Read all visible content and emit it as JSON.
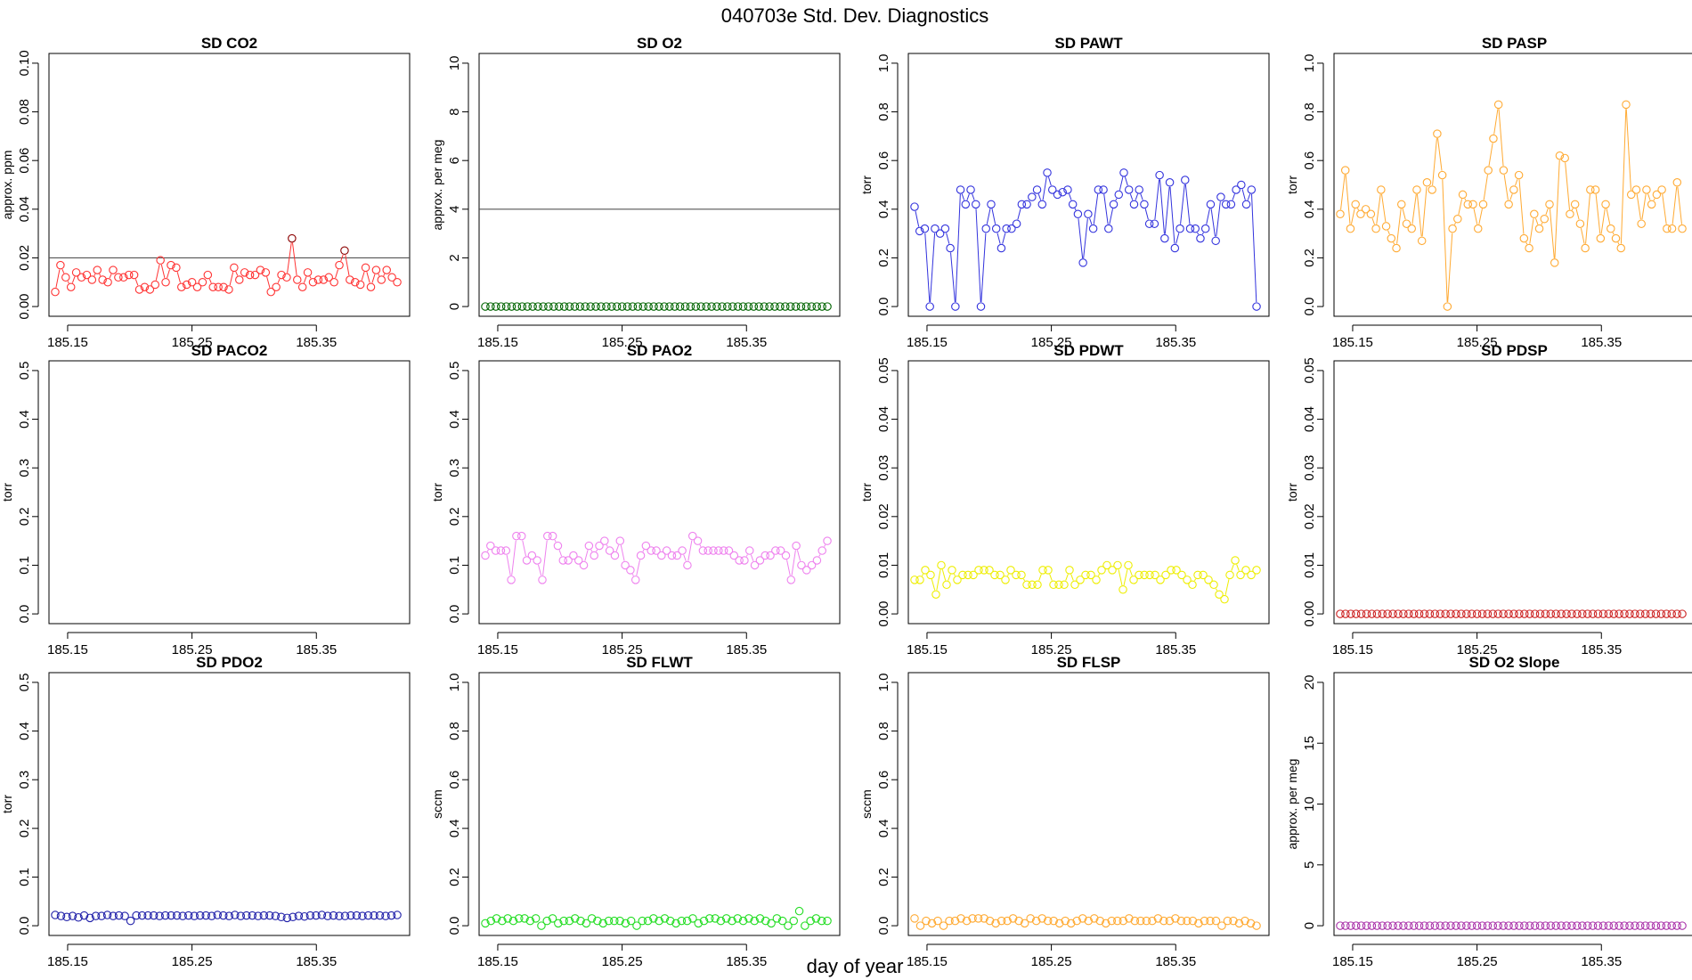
{
  "figure": {
    "title": "040703e   Std. Dev. Diagnostics",
    "xlabel": "day of year"
  },
  "chart_data": [
    {
      "type": "scatter",
      "title": "SD CO2",
      "ylabel": "approx. ppm",
      "ylim": [
        0,
        0.1
      ],
      "yticks": [
        0,
        0.02,
        0.04,
        0.06,
        0.08,
        0.1
      ],
      "yticklabels": [
        "0.00",
        "0.02",
        "0.04",
        "0.06",
        "0.08",
        "0.10"
      ],
      "hline": 0.02,
      "color": "#ff3333",
      "line": true,
      "values": [
        0.006,
        0.017,
        0.012,
        0.008,
        0.014,
        0.012,
        0.013,
        0.011,
        0.015,
        0.011,
        0.01,
        0.015,
        0.012,
        0.012,
        0.013,
        0.013,
        0.007,
        0.008,
        0.007,
        0.009,
        0.019,
        0.01,
        0.017,
        0.016,
        0.008,
        0.009,
        0.01,
        0.008,
        0.01,
        0.013,
        0.008,
        0.008,
        0.008,
        0.007,
        0.016,
        0.011,
        0.014,
        0.013,
        0.013,
        0.015,
        0.014,
        0.006,
        0.008,
        0.013,
        0.012,
        0.028,
        0.011,
        0.008,
        0.014,
        0.01,
        0.011,
        0.011,
        0.012,
        0.01,
        0.017,
        0.023,
        0.011,
        0.01,
        0.009,
        0.016,
        0.008,
        0.015,
        0.011,
        0.015,
        0.012,
        0.01
      ],
      "highlight_color": "#8b0000",
      "highlight_indices": [
        45,
        55
      ]
    },
    {
      "type": "scatter",
      "title": "SD O2",
      "ylabel": "approx. per meg",
      "ylim": [
        0,
        10
      ],
      "yticks": [
        0,
        2,
        4,
        6,
        8,
        10
      ],
      "yticklabels": [
        "0",
        "2",
        "4",
        "6",
        "8",
        "10"
      ],
      "hline": 4,
      "color": "#006400",
      "line": false,
      "constant": 0
    },
    {
      "type": "scatter",
      "title": "SD PAWT",
      "ylabel": "torr",
      "ylim": [
        0,
        1
      ],
      "yticks": [
        0,
        0.2,
        0.4,
        0.6,
        0.8,
        1
      ],
      "yticklabels": [
        "0.0",
        "0.2",
        "0.4",
        "0.6",
        "0.8",
        "1.0"
      ],
      "hline": null,
      "color": "#3333dd",
      "line": true,
      "values": [
        0.41,
        0.31,
        0.32,
        0.0,
        0.32,
        0.3,
        0.32,
        0.24,
        0.0,
        0.48,
        0.42,
        0.48,
        0.42,
        0.0,
        0.32,
        0.42,
        0.32,
        0.24,
        0.32,
        0.32,
        0.34,
        0.42,
        0.42,
        0.45,
        0.48,
        0.42,
        0.55,
        0.48,
        0.46,
        0.47,
        0.48,
        0.42,
        0.38,
        0.18,
        0.38,
        0.32,
        0.48,
        0.48,
        0.32,
        0.42,
        0.46,
        0.55,
        0.48,
        0.42,
        0.48,
        0.42,
        0.34,
        0.34,
        0.54,
        0.28,
        0.51,
        0.24,
        0.32,
        0.52,
        0.32,
        0.32,
        0.28,
        0.32,
        0.42,
        0.27,
        0.45,
        0.42,
        0.42,
        0.48,
        0.5,
        0.42,
        0.48,
        0.0
      ]
    },
    {
      "type": "scatter",
      "title": "SD PASP",
      "ylabel": "torr",
      "ylim": [
        0,
        1
      ],
      "yticks": [
        0,
        0.2,
        0.4,
        0.6,
        0.8,
        1
      ],
      "yticklabels": [
        "0.0",
        "0.2",
        "0.4",
        "0.6",
        "0.8",
        "1.0"
      ],
      "hline": null,
      "color": "#ffaa33",
      "line": true,
      "values": [
        0.38,
        0.56,
        0.32,
        0.42,
        0.38,
        0.4,
        0.38,
        0.32,
        0.48,
        0.33,
        0.28,
        0.24,
        0.42,
        0.34,
        0.32,
        0.48,
        0.27,
        0.51,
        0.48,
        0.71,
        0.54,
        0.0,
        0.32,
        0.36,
        0.46,
        0.42,
        0.42,
        0.32,
        0.42,
        0.56,
        0.69,
        0.83,
        0.56,
        0.42,
        0.48,
        0.54,
        0.28,
        0.24,
        0.38,
        0.32,
        0.36,
        0.42,
        0.18,
        0.62,
        0.61,
        0.38,
        0.42,
        0.34,
        0.24,
        0.48,
        0.48,
        0.28,
        0.42,
        0.32,
        0.28,
        0.24,
        0.83,
        0.46,
        0.48,
        0.34,
        0.48,
        0.42,
        0.46,
        0.48,
        0.32,
        0.32,
        0.51,
        0.32
      ]
    },
    {
      "type": "scatter",
      "title": "SD PACO2",
      "ylabel": "torr",
      "ylim": [
        0,
        0.5
      ],
      "yticks": [
        0,
        0.1,
        0.2,
        0.3,
        0.4,
        0.5
      ],
      "yticklabels": [
        "0.0",
        "0.1",
        "0.2",
        "0.3",
        "0.4",
        "0.5"
      ],
      "hline": null,
      "color": "#000000",
      "line": false,
      "empty": true
    },
    {
      "type": "scatter",
      "title": "SD PAO2",
      "ylabel": "torr",
      "ylim": [
        0,
        0.5
      ],
      "yticks": [
        0,
        0.1,
        0.2,
        0.3,
        0.4,
        0.5
      ],
      "yticklabels": [
        "0.0",
        "0.1",
        "0.2",
        "0.3",
        "0.4",
        "0.5"
      ],
      "hline": null,
      "color": "#ee82ee",
      "line": true,
      "values": [
        0.12,
        0.14,
        0.13,
        0.13,
        0.13,
        0.07,
        0.16,
        0.16,
        0.11,
        0.12,
        0.11,
        0.07,
        0.16,
        0.16,
        0.14,
        0.11,
        0.11,
        0.12,
        0.11,
        0.1,
        0.14,
        0.12,
        0.14,
        0.15,
        0.13,
        0.12,
        0.15,
        0.1,
        0.09,
        0.07,
        0.12,
        0.14,
        0.13,
        0.13,
        0.12,
        0.13,
        0.12,
        0.12,
        0.13,
        0.1,
        0.16,
        0.15,
        0.13,
        0.13,
        0.13,
        0.13,
        0.13,
        0.13,
        0.12,
        0.11,
        0.11,
        0.13,
        0.1,
        0.11,
        0.12,
        0.12,
        0.13,
        0.13,
        0.12,
        0.07,
        0.14,
        0.1,
        0.09,
        0.1,
        0.11,
        0.13,
        0.15
      ]
    },
    {
      "type": "scatter",
      "title": "SD PDWT",
      "ylabel": "torr",
      "ylim": [
        0,
        0.05
      ],
      "yticks": [
        0,
        0.01,
        0.02,
        0.03,
        0.04,
        0.05
      ],
      "yticklabels": [
        "0.00",
        "0.01",
        "0.02",
        "0.03",
        "0.04",
        "0.05"
      ],
      "hline": null,
      "color": "#eeee00",
      "line": true,
      "values": [
        0.007,
        0.007,
        0.009,
        0.008,
        0.004,
        0.01,
        0.006,
        0.009,
        0.007,
        0.008,
        0.008,
        0.008,
        0.009,
        0.009,
        0.009,
        0.008,
        0.008,
        0.007,
        0.009,
        0.008,
        0.008,
        0.006,
        0.006,
        0.006,
        0.009,
        0.009,
        0.006,
        0.006,
        0.006,
        0.009,
        0.006,
        0.007,
        0.008,
        0.008,
        0.007,
        0.009,
        0.01,
        0.009,
        0.01,
        0.005,
        0.01,
        0.007,
        0.008,
        0.008,
        0.008,
        0.008,
        0.007,
        0.008,
        0.009,
        0.009,
        0.008,
        0.007,
        0.006,
        0.008,
        0.008,
        0.007,
        0.006,
        0.004,
        0.003,
        0.008,
        0.011,
        0.008,
        0.009,
        0.008,
        0.009
      ]
    },
    {
      "type": "scatter",
      "title": "SD PDSP",
      "ylabel": "torr",
      "ylim": [
        0,
        0.05
      ],
      "yticks": [
        0,
        0.01,
        0.02,
        0.03,
        0.04,
        0.05
      ],
      "yticklabels": [
        "0.00",
        "0.01",
        "0.02",
        "0.03",
        "0.04",
        "0.05"
      ],
      "hline": null,
      "color": "#cc2222",
      "line": false,
      "constant": 0
    },
    {
      "type": "scatter",
      "title": "SD PDO2",
      "ylabel": "torr",
      "ylim": [
        0,
        0.5
      ],
      "yticks": [
        0,
        0.1,
        0.2,
        0.3,
        0.4,
        0.5
      ],
      "yticklabels": [
        "0.0",
        "0.1",
        "0.2",
        "0.3",
        "0.4",
        "0.5"
      ],
      "hline": null,
      "color": "#2222aa",
      "line": false,
      "values": [
        0.022,
        0.02,
        0.018,
        0.02,
        0.017,
        0.021,
        0.016,
        0.02,
        0.02,
        0.022,
        0.02,
        0.021,
        0.02,
        0.01,
        0.021,
        0.021,
        0.021,
        0.021,
        0.02,
        0.021,
        0.021,
        0.021,
        0.02,
        0.021,
        0.02,
        0.021,
        0.021,
        0.02,
        0.022,
        0.021,
        0.02,
        0.022,
        0.02,
        0.021,
        0.021,
        0.02,
        0.021,
        0.021,
        0.02,
        0.018,
        0.016,
        0.018,
        0.02,
        0.019,
        0.021,
        0.021,
        0.022,
        0.02,
        0.021,
        0.02,
        0.02,
        0.021,
        0.021,
        0.02,
        0.021,
        0.021,
        0.021,
        0.02,
        0.021,
        0.022
      ]
    },
    {
      "type": "scatter",
      "title": "SD FLWT",
      "ylabel": "sccm",
      "ylim": [
        0,
        1
      ],
      "yticks": [
        0,
        0.2,
        0.4,
        0.6,
        0.8,
        1
      ],
      "yticklabels": [
        "0.0",
        "0.2",
        "0.4",
        "0.6",
        "0.8",
        "1.0"
      ],
      "hline": null,
      "color": "#22dd22",
      "line": false,
      "values": [
        0.01,
        0.02,
        0.03,
        0.02,
        0.03,
        0.02,
        0.03,
        0.03,
        0.02,
        0.03,
        0.0,
        0.02,
        0.03,
        0.01,
        0.02,
        0.02,
        0.03,
        0.02,
        0.01,
        0.03,
        0.02,
        0.01,
        0.02,
        0.02,
        0.02,
        0.01,
        0.02,
        0.0,
        0.02,
        0.02,
        0.03,
        0.02,
        0.03,
        0.02,
        0.01,
        0.02,
        0.02,
        0.03,
        0.01,
        0.02,
        0.03,
        0.03,
        0.02,
        0.03,
        0.02,
        0.03,
        0.02,
        0.03,
        0.02,
        0.03,
        0.02,
        0.01,
        0.03,
        0.02,
        0.0,
        0.02,
        0.06,
        0.0,
        0.02,
        0.03,
        0.02,
        0.02
      ]
    },
    {
      "type": "scatter",
      "title": "SD FLSP",
      "ylabel": "sccm",
      "ylim": [
        0,
        1
      ],
      "yticks": [
        0,
        0.2,
        0.4,
        0.6,
        0.8,
        1
      ],
      "yticklabels": [
        "0.0",
        "0.2",
        "0.4",
        "0.6",
        "0.8",
        "1.0"
      ],
      "hline": null,
      "color": "#ffaa33",
      "line": false,
      "values": [
        0.03,
        0.0,
        0.02,
        0.01,
        0.02,
        0.0,
        0.02,
        0.02,
        0.03,
        0.02,
        0.03,
        0.03,
        0.03,
        0.02,
        0.01,
        0.02,
        0.02,
        0.03,
        0.02,
        0.01,
        0.03,
        0.02,
        0.03,
        0.02,
        0.02,
        0.01,
        0.02,
        0.01,
        0.02,
        0.03,
        0.02,
        0.03,
        0.02,
        0.01,
        0.02,
        0.02,
        0.02,
        0.03,
        0.02,
        0.02,
        0.02,
        0.02,
        0.03,
        0.02,
        0.02,
        0.03,
        0.02,
        0.02,
        0.02,
        0.01,
        0.02,
        0.02,
        0.02,
        0.0,
        0.02,
        0.02,
        0.01,
        0.02,
        0.01,
        0.0
      ]
    },
    {
      "type": "scatter",
      "title": "SD O2 Slope",
      "ylabel": "approx. per meg",
      "ylim": [
        0,
        20
      ],
      "yticks": [
        0,
        5,
        10,
        15,
        20
      ],
      "yticklabels": [
        "0",
        "5",
        "10",
        "15",
        "20"
      ],
      "hline": null,
      "color": "#aa33aa",
      "line": false,
      "constant": 0
    }
  ],
  "x_axis": {
    "xlim": [
      185.135,
      185.425
    ],
    "ticks": [
      185.15,
      185.25,
      185.35
    ],
    "ticklabels": [
      "185.15",
      "185.25",
      "185.35"
    ],
    "xstart": 185.14,
    "xend": 185.415,
    "n_default": 66
  }
}
